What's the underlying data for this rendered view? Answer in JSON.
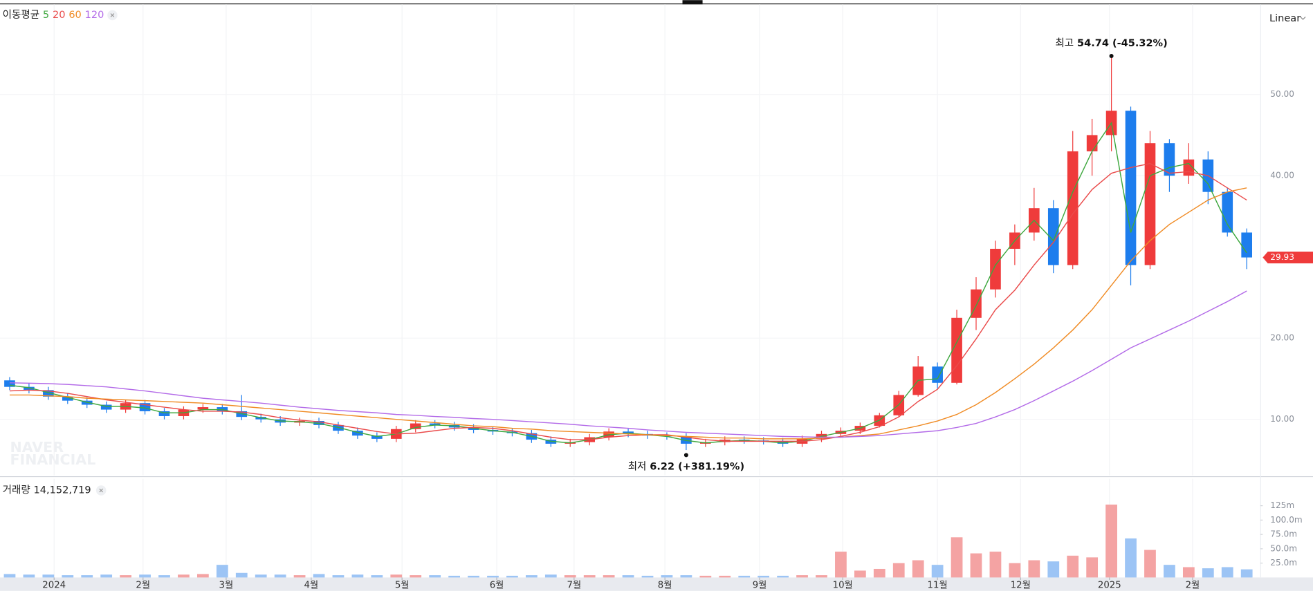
{
  "chart_data": [
    {
      "type": "candlestick",
      "legend_title": "이동평균",
      "scale_mode": "Linear",
      "watermark": [
        "NAVER",
        "FINANCIAL"
      ],
      "up_color": "#ef3b3b",
      "down_color": "#1d7ded",
      "open": [
        14.8,
        14.0,
        13.6,
        12.8,
        12.3,
        11.8,
        11.2,
        12.0,
        11.0,
        10.4,
        11.2,
        11.5,
        11.0,
        10.3,
        10.0,
        9.6,
        9.8,
        9.3,
        8.6,
        8.0,
        7.6,
        8.8,
        9.5,
        9.3,
        9.0,
        8.7,
        8.5,
        8.3,
        7.5,
        7.0,
        7.2,
        7.8,
        8.5,
        8.2,
        8.0,
        7.9,
        7.0,
        7.2,
        7.5,
        7.4,
        7.3,
        7.0,
        7.6,
        8.2,
        8.6,
        9.2,
        10.5,
        13.0,
        16.5,
        14.5,
        22.5,
        26.0,
        31.0,
        33.0,
        36.0,
        29.0,
        43.0,
        45.0,
        48.0,
        29.0,
        44.0,
        40.0,
        42.0,
        38.0,
        33.0
      ],
      "high": [
        15.2,
        14.4,
        14.0,
        13.2,
        12.7,
        12.2,
        12.4,
        12.4,
        11.4,
        11.6,
        11.9,
        11.9,
        13.0,
        10.7,
        10.4,
        10.2,
        10.2,
        9.7,
        9.0,
        8.4,
        9.2,
        9.9,
        9.9,
        9.7,
        9.4,
        9.1,
        8.9,
        8.7,
        7.9,
        7.6,
        8.2,
        8.9,
        8.9,
        8.6,
        8.4,
        8.3,
        7.6,
        7.9,
        7.9,
        7.8,
        7.7,
        8.0,
        8.6,
        9.0,
        9.6,
        10.8,
        13.5,
        17.8,
        17.0,
        23.5,
        27.5,
        32.0,
        34.0,
        38.5,
        37.0,
        45.5,
        47.0,
        54.74,
        48.5,
        45.5,
        44.5,
        44.0,
        43.0,
        38.5,
        33.5
      ],
      "low": [
        13.6,
        13.2,
        12.4,
        11.9,
        11.4,
        10.8,
        10.8,
        10.6,
        10.0,
        10.0,
        10.8,
        10.6,
        9.9,
        9.6,
        9.2,
        9.2,
        8.9,
        8.2,
        7.6,
        7.2,
        7.2,
        8.4,
        8.9,
        8.6,
        8.3,
        8.1,
        7.9,
        7.1,
        6.6,
        6.6,
        6.8,
        7.4,
        7.8,
        7.6,
        7.5,
        6.22,
        6.6,
        6.8,
        7.0,
        6.9,
        6.6,
        6.6,
        7.2,
        7.8,
        8.2,
        9.0,
        10.3,
        12.8,
        13.8,
        14.3,
        21.0,
        25.0,
        29.0,
        32.0,
        28.0,
        28.5,
        40.0,
        43.0,
        26.5,
        28.5,
        38.0,
        39.0,
        36.5,
        32.5,
        28.5
      ],
      "close": [
        14.0,
        13.6,
        12.8,
        12.3,
        11.8,
        11.2,
        12.0,
        11.0,
        10.4,
        11.2,
        11.5,
        11.0,
        10.3,
        10.0,
        9.6,
        9.8,
        9.3,
        8.6,
        8.0,
        7.6,
        8.8,
        9.5,
        9.3,
        9.0,
        8.7,
        8.5,
        8.3,
        7.5,
        7.0,
        7.2,
        7.8,
        8.5,
        8.2,
        8.0,
        7.9,
        7.0,
        7.2,
        7.5,
        7.4,
        7.3,
        7.0,
        7.6,
        8.2,
        8.6,
        9.2,
        10.5,
        13.0,
        16.5,
        14.5,
        22.5,
        26.0,
        31.0,
        33.0,
        36.0,
        29.0,
        43.0,
        45.0,
        48.0,
        29.0,
        44.0,
        40.0,
        42.0,
        38.0,
        33.0,
        29.93
      ],
      "series": [
        {
          "name": "5",
          "color": "#3fa83f",
          "values": [
            14.2,
            13.9,
            13.3,
            12.7,
            12.1,
            11.6,
            11.6,
            11.4,
            10.8,
            10.8,
            11.2,
            11.2,
            10.7,
            10.2,
            9.8,
            9.7,
            9.5,
            9.0,
            8.4,
            7.9,
            8.2,
            9.0,
            9.3,
            9.2,
            8.9,
            8.6,
            8.4,
            7.9,
            7.3,
            7.1,
            7.5,
            8.1,
            8.3,
            8.1,
            7.9,
            7.4,
            7.1,
            7.3,
            7.4,
            7.3,
            7.1,
            7.3,
            7.9,
            8.4,
            8.9,
            9.9,
            11.8,
            14.8,
            15.0,
            19.5,
            24.0,
            29.0,
            32.0,
            34.5,
            32.0,
            38.0,
            43.0,
            46.5,
            33.0,
            40.0,
            41.0,
            41.5,
            39.0,
            34.0,
            30.5
          ]
        },
        {
          "name": "20",
          "color": "#ea4b4b",
          "values": [
            13.5,
            13.6,
            13.5,
            13.2,
            12.8,
            12.4,
            12.1,
            11.8,
            11.5,
            11.2,
            11.0,
            11.0,
            10.9,
            10.6,
            10.2,
            9.9,
            9.7,
            9.3,
            8.9,
            8.5,
            8.2,
            8.3,
            8.6,
            8.9,
            9.0,
            8.9,
            8.6,
            8.2,
            7.8,
            7.5,
            7.5,
            7.8,
            8.0,
            8.1,
            8.1,
            7.8,
            7.5,
            7.3,
            7.3,
            7.3,
            7.3,
            7.3,
            7.5,
            7.9,
            8.4,
            9.1,
            10.3,
            12.2,
            13.7,
            16.6,
            19.9,
            23.5,
            25.9,
            29.0,
            31.8,
            35.3,
            38.3,
            40.3,
            41.0,
            41.5,
            40.3,
            40.5,
            40.0,
            38.5,
            37.0
          ]
        },
        {
          "name": "60",
          "color": "#f08b24",
          "values": [
            13.0,
            13.0,
            12.9,
            12.8,
            12.6,
            12.5,
            12.4,
            12.3,
            12.2,
            12.1,
            12.0,
            11.8,
            11.6,
            11.4,
            11.2,
            11.0,
            10.8,
            10.6,
            10.4,
            10.2,
            10.0,
            9.8,
            9.6,
            9.4,
            9.2,
            9.1,
            8.9,
            8.8,
            8.6,
            8.5,
            8.4,
            8.3,
            8.2,
            8.1,
            8.0,
            7.9,
            7.8,
            7.7,
            7.7,
            7.6,
            7.6,
            7.6,
            7.7,
            7.8,
            8.0,
            8.2,
            8.7,
            9.2,
            9.8,
            10.6,
            11.8,
            13.3,
            15.0,
            16.8,
            18.8,
            21.0,
            23.5,
            26.5,
            29.5,
            32.0,
            34.0,
            35.5,
            37.0,
            38.0,
            38.5
          ]
        },
        {
          "name": "120",
          "color": "#b36be8",
          "values": [
            14.5,
            14.45,
            14.4,
            14.3,
            14.15,
            14.0,
            13.75,
            13.5,
            13.2,
            12.9,
            12.6,
            12.4,
            12.2,
            12.0,
            11.75,
            11.5,
            11.3,
            11.1,
            10.95,
            10.8,
            10.6,
            10.5,
            10.35,
            10.25,
            10.1,
            10.0,
            9.85,
            9.7,
            9.55,
            9.4,
            9.2,
            9.05,
            8.9,
            8.7,
            8.55,
            8.4,
            8.3,
            8.2,
            8.1,
            8.0,
            7.9,
            7.85,
            7.8,
            7.8,
            7.9,
            8.0,
            8.2,
            8.4,
            8.6,
            9.0,
            9.5,
            10.3,
            11.2,
            12.3,
            13.5,
            14.7,
            16.0,
            17.4,
            18.8,
            19.9,
            21.0,
            22.1,
            23.3,
            24.5,
            25.8
          ]
        }
      ],
      "high_annotation": {
        "label": "최고",
        "text": "54.74 (-45.32%)"
      },
      "low_annotation": {
        "label": "최저",
        "text": "6.22 (+381.19%)"
      },
      "last_price_label": "29.93",
      "xlim": [
        -0.5,
        64.7
      ],
      "ylim": [
        3.1,
        61.1
      ],
      "yticks": [
        {
          "value": 10,
          "label": "10.00"
        },
        {
          "value": 20,
          "label": "20.00"
        },
        {
          "value": 40,
          "label": "40.00"
        },
        {
          "value": 50,
          "label": "50.00"
        }
      ],
      "grid": true
    },
    {
      "type": "bar",
      "legend_title": "거래량",
      "legend_value_label": "14,152,719",
      "up_color": "#f4a3a3",
      "down_color": "#9cc4f5",
      "values": [
        6,
        5,
        5,
        4,
        4,
        5,
        4,
        5,
        4,
        5,
        6,
        22,
        8,
        5,
        5,
        4,
        6,
        4,
        5,
        4,
        5,
        4,
        4,
        3,
        3,
        3,
        3,
        4,
        5,
        4,
        4,
        4,
        4,
        3,
        4,
        4,
        3,
        3,
        3,
        3,
        3,
        4,
        4,
        45,
        12,
        15,
        25,
        30,
        22,
        70,
        42,
        45,
        25,
        30,
        28,
        38,
        35,
        127,
        68,
        48,
        22,
        18,
        16,
        18,
        14.152719
      ],
      "xlim": [
        -0.5,
        64.7
      ],
      "xticks": [
        {
          "value": 2.3,
          "label": "2024"
        },
        {
          "value": 6.9,
          "label": "2월"
        },
        {
          "value": 11.2,
          "label": "3월"
        },
        {
          "value": 15.6,
          "label": "4월"
        },
        {
          "value": 20.3,
          "label": "5월"
        },
        {
          "value": 25.2,
          "label": "6월"
        },
        {
          "value": 29.2,
          "label": "7월"
        },
        {
          "value": 33.9,
          "label": "8월"
        },
        {
          "value": 38.8,
          "label": "9월"
        },
        {
          "value": 43.1,
          "label": "10월"
        },
        {
          "value": 48.0,
          "label": "11월"
        },
        {
          "value": 52.3,
          "label": "12월"
        },
        {
          "value": 56.9,
          "label": "2025"
        },
        {
          "value": 61.2,
          "label": "2월"
        }
      ],
      "ylim": [
        0,
        172
      ],
      "yticks": [
        {
          "value": 25,
          "label": "25.0m"
        },
        {
          "value": 50,
          "label": "50.0m"
        },
        {
          "value": 75,
          "label": "75.0m"
        },
        {
          "value": 100,
          "label": "100.0m"
        },
        {
          "value": 125,
          "label": "125m"
        }
      ]
    }
  ]
}
